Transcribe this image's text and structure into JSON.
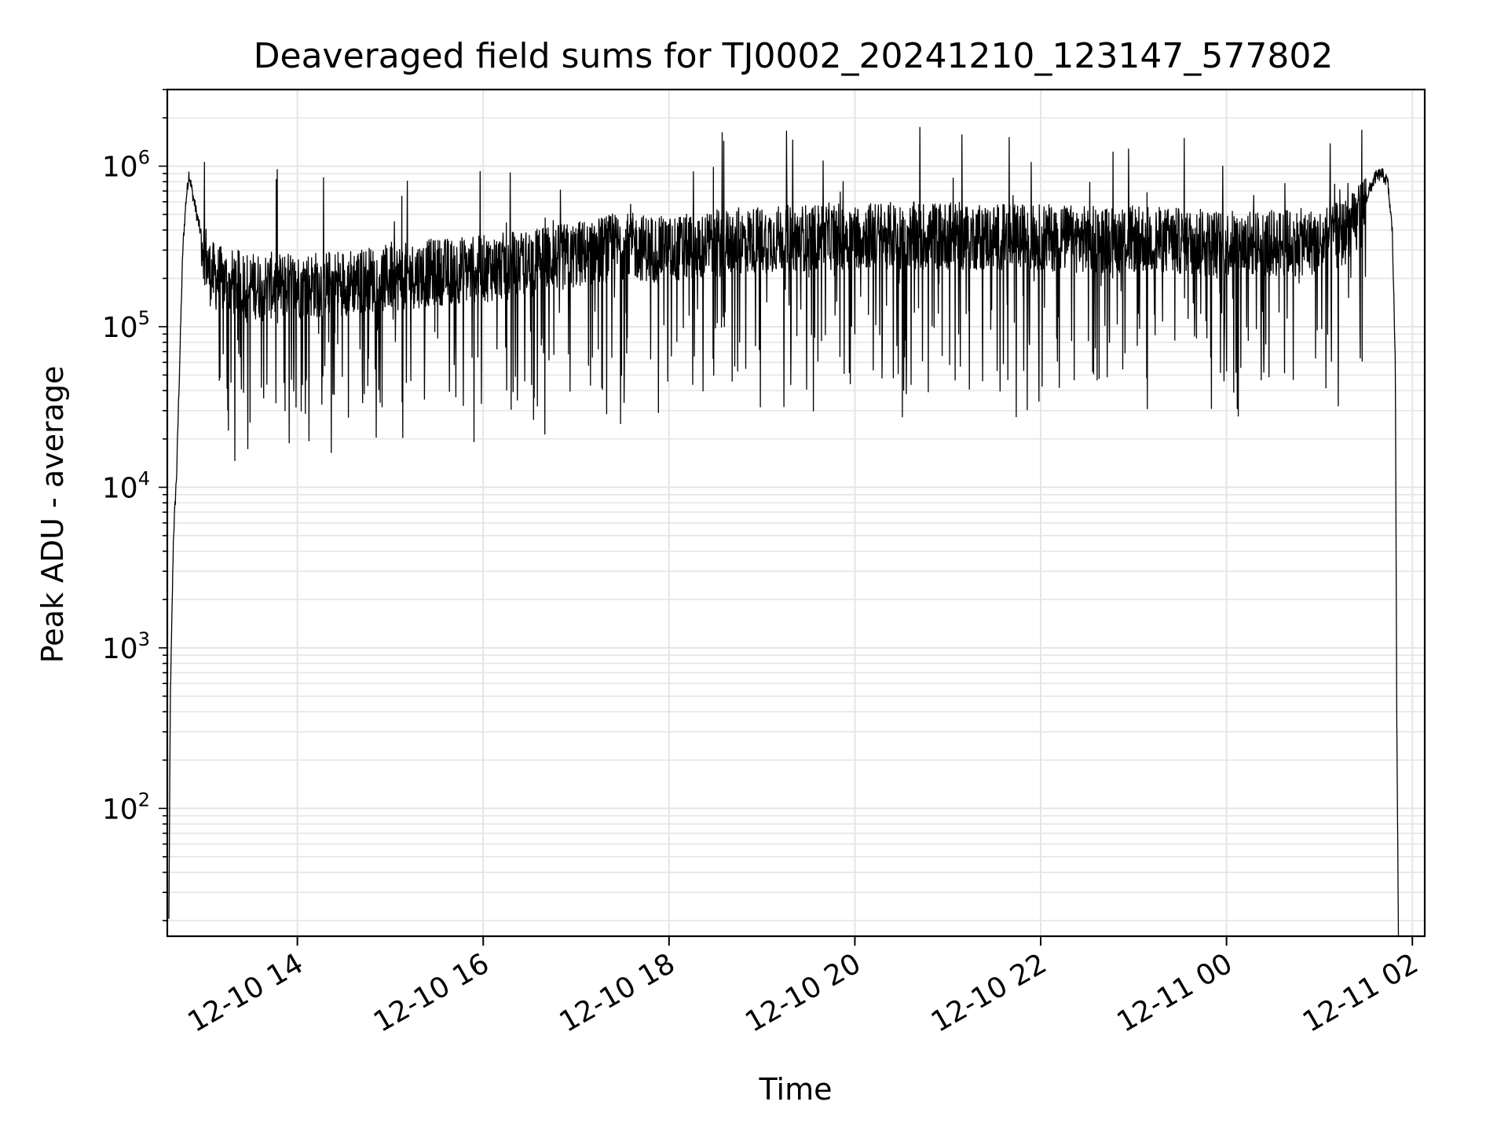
{
  "chart_data": {
    "type": "line",
    "title": "Deaveraged field sums for TJ0002_20241210_123147_577802",
    "xlabel": "Time",
    "ylabel": "Peak ADU - average",
    "y_scale": "log",
    "ylim": [
      16,
      3000000
    ],
    "xlim": [
      "2024-12-10T12:36",
      "2024-12-11T02:08"
    ],
    "grid": "both",
    "line_color": "#000000",
    "grid_color": "#e5e5e5",
    "x_ticks": [
      {
        "label": "12-10 14",
        "value": "2024-12-10T14:00"
      },
      {
        "label": "12-10 16",
        "value": "2024-12-10T16:00"
      },
      {
        "label": "12-10 18",
        "value": "2024-12-10T18:00"
      },
      {
        "label": "12-10 20",
        "value": "2024-12-10T20:00"
      },
      {
        "label": "12-10 22",
        "value": "2024-12-10T22:00"
      },
      {
        "label": "12-11 00",
        "value": "2024-12-11T00:00"
      },
      {
        "label": "12-11 02",
        "value": "2024-12-11T02:00"
      }
    ],
    "y_ticks": [
      {
        "base": "10",
        "exp": "2",
        "value": 100
      },
      {
        "base": "10",
        "exp": "3",
        "value": 1000
      },
      {
        "base": "10",
        "exp": "4",
        "value": 10000
      },
      {
        "base": "10",
        "exp": "5",
        "value": 100000
      },
      {
        "base": "10",
        "exp": "6",
        "value": 1000000
      }
    ],
    "series": [
      {
        "x": [
          "2024-12-10T12:37",
          "2024-12-10T12:38",
          "2024-12-10T12:40",
          "2024-12-10T12:42",
          "2024-12-10T12:44",
          "2024-12-10T12:46",
          "2024-12-10T12:48",
          "2024-12-10T12:50",
          "2024-12-10T12:52",
          "2024-12-10T12:55",
          "2024-12-10T13:00",
          "2024-12-10T13:03",
          "2024-12-10T13:08",
          "2024-12-10T13:15",
          "2024-12-10T13:30",
          "2024-12-10T14:00",
          "2024-12-10T14:30",
          "2024-12-10T15:00",
          "2024-12-10T15:30",
          "2024-12-10T16:00",
          "2024-12-10T16:30",
          "2024-12-10T17:00",
          "2024-12-10T17:30",
          "2024-12-10T18:00",
          "2024-12-10T18:30",
          "2024-12-10T19:00",
          "2024-12-10T19:30",
          "2024-12-10T20:00",
          "2024-12-10T20:30",
          "2024-12-10T21:00",
          "2024-12-10T21:30",
          "2024-12-10T22:00",
          "2024-12-10T22:30",
          "2024-12-10T23:00",
          "2024-12-10T23:30",
          "2024-12-11T00:00",
          "2024-12-11T00:30",
          "2024-12-11T01:00",
          "2024-12-11T01:15",
          "2024-12-11T01:25",
          "2024-12-11T01:32",
          "2024-12-11T01:36",
          "2024-12-11T01:40",
          "2024-12-11T01:44",
          "2024-12-11T01:47",
          "2024-12-11T01:49",
          "2024-12-11T01:50",
          "2024-12-11T01:51"
        ],
        "values": [
          20,
          500,
          5000,
          12000,
          60000,
          300000,
          600000,
          900000,
          700000,
          500000,
          300000,
          220000,
          200000,
          190000,
          180000,
          180000,
          190000,
          200000,
          220000,
          230000,
          250000,
          280000,
          320000,
          300000,
          330000,
          350000,
          360000,
          370000,
          370000,
          370000,
          360000,
          360000,
          350000,
          350000,
          340000,
          330000,
          330000,
          340000,
          380000,
          450000,
          700000,
          850000,
          900000,
          800000,
          400000,
          60000,
          300,
          16
        ]
      }
    ]
  }
}
